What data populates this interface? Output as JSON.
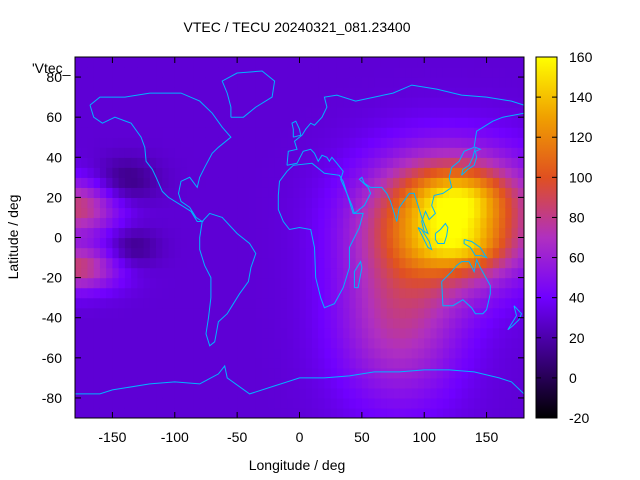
{
  "chart_data": {
    "type": "heatmap",
    "title": "VTEC / TECU 20240321_081.23400",
    "xlabel": "Longitude / deg",
    "ylabel": "Latitude / deg",
    "legend_label": "'Vtec_",
    "xlim": [
      -180,
      180
    ],
    "ylim": [
      -90,
      90
    ],
    "x_ticks": [
      -150,
      -100,
      -50,
      0,
      50,
      100,
      150
    ],
    "y_ticks": [
      -80,
      -60,
      -40,
      -20,
      0,
      20,
      40,
      60,
      80
    ],
    "colorbar": {
      "range": [
        -20,
        160
      ],
      "ticks": [
        -20,
        0,
        20,
        40,
        60,
        80,
        100,
        120,
        140,
        160
      ],
      "palette": [
        "#000000",
        "#3a0080",
        "#7000ff",
        "#b030c0",
        "#e05020",
        "#f0a000",
        "#ffff00"
      ]
    },
    "field_features": [
      {
        "lon": 120,
        "lat": 10,
        "amplitude": 105,
        "sigma_lon": 45,
        "sigma_lat": 22
      },
      {
        "lon": 130,
        "lat": 20,
        "amplitude": 35,
        "sigma_lon": 25,
        "sigma_lat": 10
      },
      {
        "lon": 130,
        "lat": -5,
        "amplitude": 30,
        "sigma_lon": 25,
        "sigma_lat": 8
      },
      {
        "lon": 80,
        "lat": -40,
        "amplitude": 45,
        "sigma_lon": 35,
        "sigma_lat": 30
      },
      {
        "lon": -180,
        "lat": 15,
        "amplitude": 55,
        "sigma_lon": 25,
        "sigma_lat": 10
      },
      {
        "lon": -180,
        "lat": -15,
        "amplitude": 55,
        "sigma_lon": 25,
        "sigma_lat": 8
      },
      {
        "lon": -140,
        "lat": 28,
        "amplitude": -22,
        "sigma_lon": 18,
        "sigma_lat": 8
      },
      {
        "lon": -135,
        "lat": -5,
        "amplitude": -20,
        "sigma_lon": 15,
        "sigma_lat": 7
      }
    ],
    "field_background": 30,
    "grid": false,
    "legend_position": "top-left"
  }
}
